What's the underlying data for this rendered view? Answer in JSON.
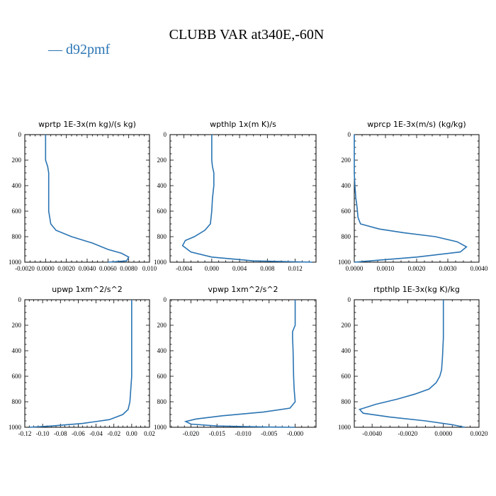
{
  "title": "CLUBB VAR at340E,-60N",
  "legend": {
    "label": "— d92pmf",
    "color": "#2a74b3"
  },
  "chart_data": [
    {
      "type": "line",
      "title": "wprtp  1E-3x(m kg)/(s kg)",
      "xlim": [
        -0.002,
        0.01
      ],
      "ylim": [
        1000,
        0
      ],
      "xticks": [
        -0.002,
        0.0,
        0.002,
        0.004,
        0.006,
        0.008,
        0.01
      ],
      "xtick_labels": [
        "-0.0020",
        "0.0000",
        "0.0020",
        "0.0040",
        "0.0060",
        "0.0080",
        "0.010"
      ],
      "yticks": [
        0,
        200,
        400,
        600,
        800,
        1000
      ],
      "ytick_labels": [
        "0",
        "200",
        "400",
        "600",
        "800",
        "1000"
      ],
      "series": [
        {
          "name": "d92pmf",
          "x": [
            0.0,
            0.0,
            0.0,
            0.0002,
            0.0003,
            0.0003,
            0.0003,
            0.0003,
            0.0004,
            0.0005,
            0.001,
            0.0025,
            0.0045,
            0.006,
            0.0073,
            0.008,
            0.0078,
            0.006
          ],
          "y": [
            0,
            100,
            200,
            250,
            300,
            400,
            500,
            600,
            650,
            700,
            750,
            800,
            850,
            900,
            930,
            960,
            990,
            1000
          ]
        }
      ]
    },
    {
      "type": "line",
      "title": "wpthlp  1x(m K)/s",
      "xlim": [
        -0.006,
        0.015
      ],
      "ylim": [
        1000,
        0
      ],
      "xticks": [
        -0.004,
        0.0,
        0.004,
        0.008,
        0.012
      ],
      "xtick_labels": [
        "-0.004",
        "0.000",
        "0.004",
        "0.008",
        "0.012"
      ],
      "yticks": [
        0,
        200,
        400,
        600,
        800,
        1000
      ],
      "ytick_labels": [
        "0",
        "200",
        "400",
        "600",
        "800",
        "1000"
      ],
      "series": [
        {
          "name": "d92pmf",
          "x": [
            0.0,
            0.0,
            0.0,
            0.0001,
            0.0003,
            0.0003,
            0.0001,
            0.0,
            -0.0001,
            -0.0002,
            -0.001,
            -0.0025,
            -0.0038,
            -0.0042,
            -0.003,
            0.0,
            0.006,
            0.0145
          ],
          "y": [
            0,
            100,
            200,
            250,
            300,
            400,
            500,
            600,
            650,
            700,
            750,
            800,
            830,
            870,
            920,
            960,
            990,
            1000
          ]
        }
      ]
    },
    {
      "type": "line",
      "title": "wprcp  1E-3x(m/s) (kg/kg)",
      "xlim": [
        0.0,
        0.004
      ],
      "ylim": [
        1000,
        0
      ],
      "xticks": [
        0.0,
        0.001,
        0.002,
        0.003,
        0.004
      ],
      "xtick_labels": [
        "0.0000",
        "0.0010",
        "0.0020",
        "0.0030",
        "0.0040"
      ],
      "yticks": [
        0,
        200,
        400,
        600,
        800,
        1000
      ],
      "ytick_labels": [
        "0",
        "200",
        "400",
        "600",
        "800",
        "1000"
      ],
      "series": [
        {
          "name": "d92pmf",
          "x": [
            0.0,
            0.0,
            0.0,
            2e-05,
            5e-05,
            8e-05,
            0.0001,
            0.00012,
            0.0002,
            0.0008,
            0.0016,
            0.0026,
            0.0033,
            0.0036,
            0.0034,
            0.002,
            0.0005,
            0.0
          ],
          "y": [
            0,
            100,
            300,
            400,
            500,
            550,
            600,
            650,
            700,
            740,
            770,
            800,
            840,
            880,
            920,
            960,
            990,
            1000
          ]
        }
      ]
    },
    {
      "type": "line",
      "title": "upwp  1xm^2/s^2",
      "xlim": [
        -0.12,
        0.02
      ],
      "ylim": [
        1000,
        0
      ],
      "xticks": [
        -0.12,
        -0.1,
        -0.08,
        -0.06,
        -0.04,
        -0.02,
        0.0,
        0.02
      ],
      "xtick_labels": [
        "-0.12",
        "-0.10",
        "-0.08",
        "-0.06",
        "-0.04",
        "-0.02",
        "0.00",
        "0.02"
      ],
      "yticks": [
        0,
        200,
        400,
        600,
        800,
        1000
      ],
      "ytick_labels": [
        "0",
        "200",
        "400",
        "600",
        "800",
        "1000"
      ],
      "series": [
        {
          "name": "d92pmf",
          "x": [
            0.0,
            0.0,
            0.0,
            0.0,
            0.0,
            0.0,
            -0.001,
            -0.002,
            -0.004,
            -0.01,
            -0.025,
            -0.055,
            -0.09,
            -0.115
          ],
          "y": [
            0,
            200,
            300,
            400,
            500,
            600,
            700,
            800,
            860,
            900,
            940,
            970,
            990,
            1000
          ]
        }
      ]
    },
    {
      "type": "line",
      "title": "vpwp  1xm^2/s^2",
      "xlim": [
        -0.024,
        0.004
      ],
      "ylim": [
        1000,
        0
      ],
      "xticks": [
        -0.02,
        -0.015,
        -0.01,
        -0.005,
        0.0
      ],
      "xtick_labels": [
        "-0.020",
        "-0.015",
        "-0.010",
        "-0.005",
        "-0.000"
      ],
      "yticks": [
        0,
        200,
        400,
        600,
        800,
        1000
      ],
      "ytick_labels": [
        "0",
        "200",
        "400",
        "600",
        "800",
        "1000"
      ],
      "series": [
        {
          "name": "d92pmf",
          "x": [
            0.0,
            0.0,
            0.0,
            -0.0005,
            -0.0005,
            -0.0004,
            -0.0003,
            -0.0002,
            0.0,
            -0.001,
            -0.006,
            -0.014,
            -0.019,
            -0.021,
            -0.02,
            -0.015,
            -0.005,
            0.0
          ],
          "y": [
            0,
            100,
            200,
            250,
            300,
            400,
            600,
            700,
            800,
            850,
            880,
            910,
            935,
            955,
            975,
            990,
            998,
            1000
          ]
        }
      ]
    },
    {
      "type": "line",
      "title": "rtpthlp  1E-3x(kg K)/kg",
      "xlim": [
        -0.005,
        0.002
      ],
      "ylim": [
        1000,
        0
      ],
      "xticks": [
        -0.004,
        -0.002,
        0.0,
        0.002
      ],
      "xtick_labels": [
        "-0.0040",
        "-0.0020",
        "0.0000",
        "0.0020"
      ],
      "yticks": [
        0,
        200,
        400,
        600,
        800,
        1000
      ],
      "ytick_labels": [
        "0",
        "200",
        "400",
        "600",
        "800",
        "1000"
      ],
      "series": [
        {
          "name": "d92pmf",
          "x": [
            0.0,
            0.0,
            0.0,
            -5e-05,
            -0.0001,
            -0.0002,
            -0.0004,
            -0.0008,
            -0.0016,
            -0.0026,
            -0.0038,
            -0.0047,
            -0.0045,
            -0.003,
            -0.001,
            0.0005,
            0.0012
          ],
          "y": [
            0,
            100,
            300,
            450,
            550,
            600,
            650,
            700,
            740,
            780,
            820,
            860,
            890,
            920,
            950,
            980,
            1000
          ]
        }
      ]
    }
  ]
}
